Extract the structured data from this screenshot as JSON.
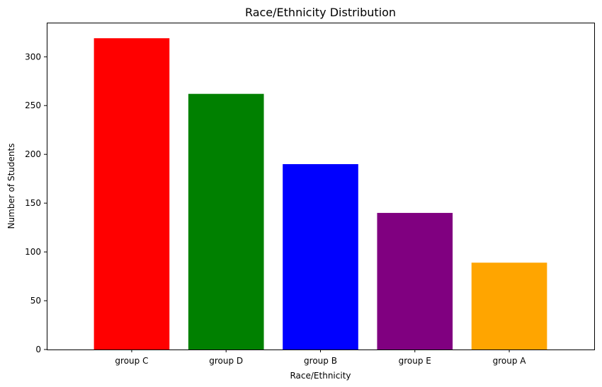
{
  "chart_data": {
    "type": "bar",
    "title": "Race/Ethnicity Distribution",
    "xlabel": "Race/Ethnicity",
    "ylabel": "Number of Students",
    "categories": [
      "group C",
      "group D",
      "group B",
      "group E",
      "group A"
    ],
    "values": [
      319,
      262,
      190,
      140,
      89
    ],
    "colors": [
      "#ff0000",
      "#008000",
      "#0000ff",
      "#800080",
      "#ffa500"
    ],
    "ylim": [
      0,
      335
    ],
    "yticks": [
      0,
      50,
      100,
      150,
      200,
      250,
      300
    ],
    "ytick_labels": [
      "0",
      "50",
      "100",
      "150",
      "200",
      "250",
      "300"
    ],
    "grid": false,
    "legend": false
  }
}
